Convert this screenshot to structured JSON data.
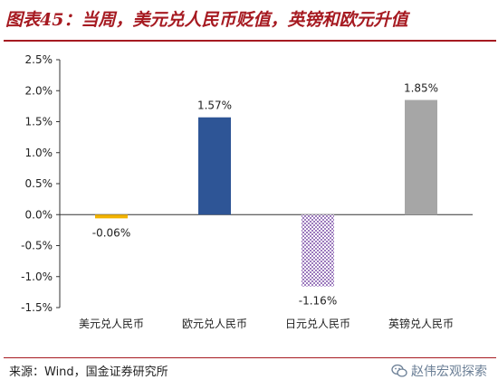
{
  "header": {
    "title": "图表45：当周，美元兑人民币贬值，英镑和欧元升值",
    "source": "来源：Wind，国金证券研究所",
    "watermark": "赵伟宏观探索",
    "watermark_icon": "wechat-icon",
    "brand_color": "#a61a21"
  },
  "chart_data": {
    "type": "bar",
    "categories": [
      "美元兑人民币",
      "欧元兑人民币",
      "日元兑人民币",
      "英镑兑人民币"
    ],
    "values": [
      -0.06,
      1.57,
      -1.16,
      1.85
    ],
    "data_labels": [
      "-0.06%",
      "1.57%",
      "-1.16%",
      "1.85%"
    ],
    "bar_colors": [
      "#f2b300",
      "#2e5596",
      "#7d4fa8",
      "#a6a6a6"
    ],
    "bar_patterns": [
      "solid",
      "solid",
      "dotted",
      "solid"
    ],
    "ylim": [
      -1.5,
      2.5
    ],
    "yticks": [
      2.5,
      2.0,
      1.5,
      1.0,
      0.5,
      0.0,
      -0.5,
      -1.0,
      -1.5
    ],
    "ytick_labels": [
      "2.5%",
      "2.0%",
      "1.5%",
      "1.0%",
      "0.5%",
      "0.0%",
      "-0.5%",
      "-1.0%",
      "-1.5%"
    ],
    "grid": false,
    "legend": "none"
  }
}
